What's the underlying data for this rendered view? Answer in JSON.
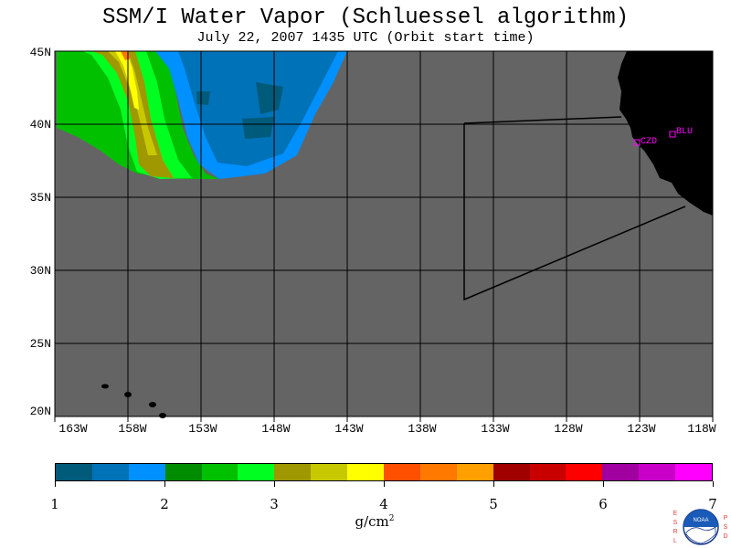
{
  "title": "SSM/I Water Vapor (Schluessel algorithm)",
  "subtitle": "July 22, 2007  1435 UTC  (Orbit start time)",
  "map": {
    "lat_labels": [
      "45N",
      "40N",
      "35N",
      "30N",
      "25N",
      "20N"
    ],
    "lon_labels": [
      "163W",
      "158W",
      "153W",
      "148W",
      "143W",
      "138W",
      "133W",
      "128W",
      "123W",
      "118W"
    ],
    "ocean_color": "#646464",
    "land_color": "#000000",
    "station_color": "#ff00ff",
    "stations": [
      {
        "label": "CZD",
        "lon": -123.05,
        "lat": 38.6
      },
      {
        "label": "BLU",
        "lon": -120.7,
        "lat": 39.3
      }
    ]
  },
  "colorbar": {
    "colors": [
      "#005a7a",
      "#0072b8",
      "#0090ff",
      "#008c00",
      "#00c000",
      "#00ff20",
      "#a09800",
      "#c8c800",
      "#ffff00",
      "#ff5000",
      "#ff7800",
      "#ffa000",
      "#a00000",
      "#c80000",
      "#ff0000",
      "#a000a0",
      "#c800c8",
      "#ff00ff"
    ],
    "tick_labels": [
      "1",
      "2",
      "3",
      "4",
      "5",
      "6",
      "7"
    ],
    "units_base": "g/cm",
    "units_sup": "2"
  },
  "logo": {
    "left_text": "ESRL",
    "right_text": "PSD",
    "center_text": "NOAA"
  }
}
